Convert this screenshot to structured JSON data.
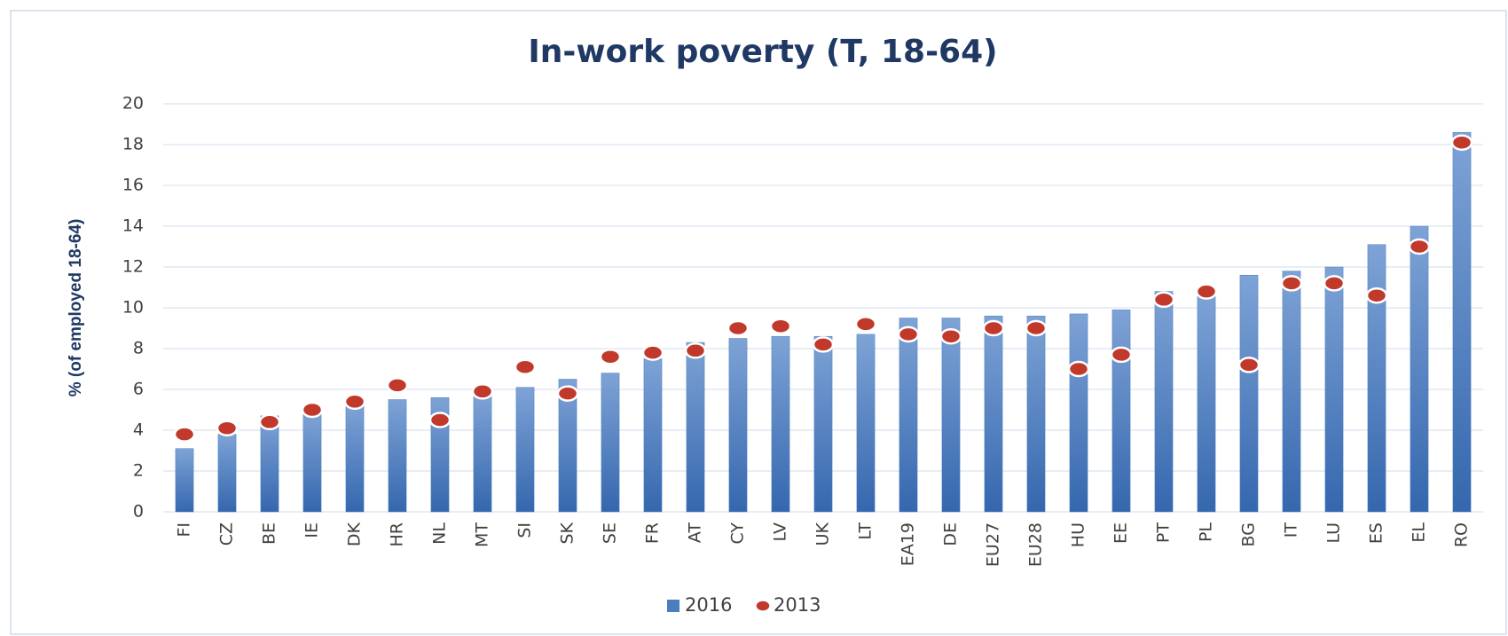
{
  "chart_data": {
    "type": "bar",
    "title": "In-work poverty (T, 18-64)",
    "y_label": "% (of employed 18-64)",
    "categories": [
      "FI",
      "CZ",
      "BE",
      "IE",
      "DK",
      "HR",
      "NL",
      "MT",
      "SI",
      "SK",
      "SE",
      "FR",
      "AT",
      "CY",
      "LV",
      "UK",
      "LT",
      "EA19",
      "DE",
      "EU27",
      "EU28",
      "HU",
      "EE",
      "PT",
      "PL",
      "BG",
      "IT",
      "LU",
      "ES",
      "EL",
      "RO"
    ],
    "series": [
      {
        "name": "2016",
        "type": "bar",
        "color": "#4a7ebf",
        "values": [
          3.1,
          3.8,
          4.7,
          4.8,
          5.2,
          5.5,
          5.6,
          5.7,
          6.1,
          6.5,
          6.8,
          7.5,
          8.3,
          8.5,
          8.6,
          8.6,
          8.7,
          9.5,
          9.5,
          9.6,
          9.6,
          9.7,
          9.9,
          10.8,
          10.6,
          11.6,
          11.8,
          12.0,
          13.1,
          14.0,
          18.6
        ]
      },
      {
        "name": "2013",
        "type": "dot",
        "color": "#c0392b",
        "values": [
          3.8,
          4.1,
          4.4,
          5.0,
          5.4,
          6.2,
          4.5,
          5.9,
          7.1,
          5.8,
          7.6,
          7.8,
          7.9,
          9.0,
          9.1,
          8.2,
          9.2,
          8.7,
          8.6,
          9.0,
          9.0,
          7.0,
          7.7,
          10.4,
          10.8,
          7.2,
          11.2,
          11.2,
          10.6,
          13.0,
          18.1
        ]
      }
    ],
    "ylim": [
      0,
      20
    ],
    "yticks": [
      0,
      2,
      4,
      6,
      8,
      10,
      12,
      14,
      16,
      18,
      20
    ],
    "grid": true,
    "legend": "bottom"
  }
}
